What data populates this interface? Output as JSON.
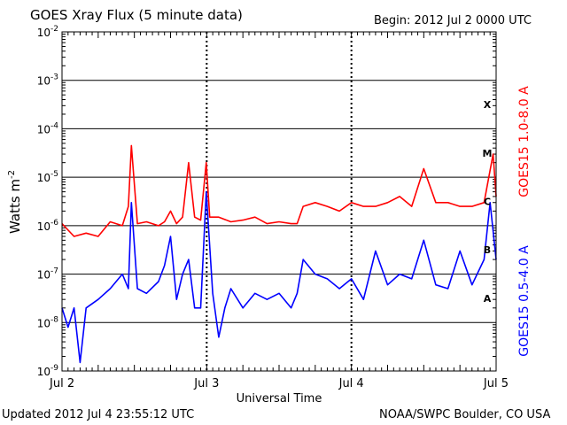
{
  "header": {
    "title": "GOES Xray Flux (5 minute data)",
    "begin": "Begin:  2012 Jul 2 0000 UTC"
  },
  "footer": {
    "updated": "Updated 2012 Jul  4 23:55:12 UTC",
    "credit": "NOAA/SWPC Boulder, CO USA"
  },
  "chart_data": {
    "type": "line",
    "title": "GOES Xray Flux (5 minute data)",
    "xlabel": "Universal Time",
    "ylabel": "Watts m",
    "ylabel_superscript": "-2",
    "yscale": "log",
    "ylim": [
      1e-09,
      0.01
    ],
    "xlim": [
      "2012-07-02 00:00",
      "2012-07-05 00:00"
    ],
    "x_ticks": [
      "Jul 2",
      "Jul 3",
      "Jul 4",
      "Jul 5"
    ],
    "y_ticks": [
      {
        "mant": "10",
        "exp": "-9"
      },
      {
        "mant": "10",
        "exp": "-8"
      },
      {
        "mant": "10",
        "exp": "-7"
      },
      {
        "mant": "10",
        "exp": "-6"
      },
      {
        "mant": "10",
        "exp": "-5"
      },
      {
        "mant": "10",
        "exp": "-4"
      },
      {
        "mant": "10",
        "exp": "-3"
      },
      {
        "mant": "10",
        "exp": "-2"
      }
    ],
    "flare_classes": [
      {
        "label": "A",
        "level": 1e-08
      },
      {
        "label": "B",
        "level": 1e-07
      },
      {
        "label": "C",
        "level": 1e-06
      },
      {
        "label": "M",
        "level": 1e-05
      },
      {
        "label": "X",
        "level": 0.0001
      }
    ],
    "grid": true,
    "series": [
      {
        "name": "GOES15 1.0-8.0 A",
        "color": "#ff0000",
        "x": [
          "2012-07-02 00:00",
          "2012-07-02 02:00",
          "2012-07-02 04:00",
          "2012-07-02 06:00",
          "2012-07-02 08:00",
          "2012-07-02 10:00",
          "2012-07-02 11:00",
          "2012-07-02 11:30",
          "2012-07-02 12:30",
          "2012-07-02 14:00",
          "2012-07-02 16:00",
          "2012-07-02 17:00",
          "2012-07-02 18:00",
          "2012-07-02 19:00",
          "2012-07-02 20:00",
          "2012-07-02 21:00",
          "2012-07-02 22:00",
          "2012-07-02 23:00",
          "2012-07-02 23:55",
          "2012-07-03 00:30",
          "2012-07-03 02:00",
          "2012-07-03 04:00",
          "2012-07-03 06:00",
          "2012-07-03 08:00",
          "2012-07-03 10:00",
          "2012-07-03 12:00",
          "2012-07-03 14:00",
          "2012-07-03 15:00",
          "2012-07-03 16:00",
          "2012-07-03 18:00",
          "2012-07-03 20:00",
          "2012-07-03 22:00",
          "2012-07-04 00:00",
          "2012-07-04 02:00",
          "2012-07-04 04:00",
          "2012-07-04 06:00",
          "2012-07-04 08:00",
          "2012-07-04 10:00",
          "2012-07-04 12:00",
          "2012-07-04 14:00",
          "2012-07-04 16:00",
          "2012-07-04 18:00",
          "2012-07-04 20:00",
          "2012-07-04 22:00",
          "2012-07-04 23:30",
          "2012-07-05 00:00"
        ],
        "y": [
          1.1e-06,
          6e-07,
          7e-07,
          6e-07,
          1.2e-06,
          1e-06,
          2.5e-06,
          4.5e-05,
          1.1e-06,
          1.2e-06,
          1e-06,
          1.2e-06,
          2e-06,
          1.1e-06,
          1.5e-06,
          2e-05,
          1.5e-06,
          1.3e-06,
          2e-05,
          1.5e-06,
          1.5e-06,
          1.2e-06,
          1.3e-06,
          1.5e-06,
          1.1e-06,
          1.2e-06,
          1.1e-06,
          1.1e-06,
          2.5e-06,
          3e-06,
          2.5e-06,
          2e-06,
          3e-06,
          2.5e-06,
          2.5e-06,
          3e-06,
          4e-06,
          2.5e-06,
          1.5e-05,
          3e-06,
          3e-06,
          2.5e-06,
          2.5e-06,
          3e-06,
          3e-05,
          4e-06
        ]
      },
      {
        "name": "GOES15 0.5-4.0 A",
        "color": "#0000ff",
        "x": [
          "2012-07-02 00:00",
          "2012-07-02 01:00",
          "2012-07-02 02:00",
          "2012-07-02 03:00",
          "2012-07-02 04:00",
          "2012-07-02 06:00",
          "2012-07-02 08:00",
          "2012-07-02 10:00",
          "2012-07-02 11:00",
          "2012-07-02 11:30",
          "2012-07-02 12:30",
          "2012-07-02 14:00",
          "2012-07-02 16:00",
          "2012-07-02 17:00",
          "2012-07-02 18:00",
          "2012-07-02 19:00",
          "2012-07-02 20:00",
          "2012-07-02 21:00",
          "2012-07-02 22:00",
          "2012-07-02 23:00",
          "2012-07-02 23:55",
          "2012-07-03 01:00",
          "2012-07-03 02:00",
          "2012-07-03 03:00",
          "2012-07-03 04:00",
          "2012-07-03 06:00",
          "2012-07-03 08:00",
          "2012-07-03 10:00",
          "2012-07-03 12:00",
          "2012-07-03 14:00",
          "2012-07-03 15:00",
          "2012-07-03 16:00",
          "2012-07-03 18:00",
          "2012-07-03 20:00",
          "2012-07-03 22:00",
          "2012-07-04 00:00",
          "2012-07-04 02:00",
          "2012-07-04 04:00",
          "2012-07-04 06:00",
          "2012-07-04 08:00",
          "2012-07-04 10:00",
          "2012-07-04 12:00",
          "2012-07-04 14:00",
          "2012-07-04 16:00",
          "2012-07-04 18:00",
          "2012-07-04 20:00",
          "2012-07-04 22:00",
          "2012-07-04 23:00",
          "2012-07-05 00:00"
        ],
        "y": [
          2e-08,
          8e-09,
          2e-08,
          1.5e-09,
          2e-08,
          3e-08,
          5e-08,
          1e-07,
          5e-08,
          3e-06,
          5e-08,
          4e-08,
          7e-08,
          1.5e-07,
          6e-07,
          3e-08,
          1e-07,
          2e-07,
          2e-08,
          2e-08,
          5e-06,
          4e-08,
          5e-09,
          2e-08,
          5e-08,
          2e-08,
          4e-08,
          3e-08,
          4e-08,
          2e-08,
          4e-08,
          2e-07,
          1e-07,
          8e-08,
          5e-08,
          8e-08,
          3e-08,
          3e-07,
          6e-08,
          1e-07,
          8e-08,
          5e-07,
          6e-08,
          5e-08,
          3e-07,
          6e-08,
          2e-07,
          3e-06,
          2e-07
        ]
      }
    ]
  }
}
